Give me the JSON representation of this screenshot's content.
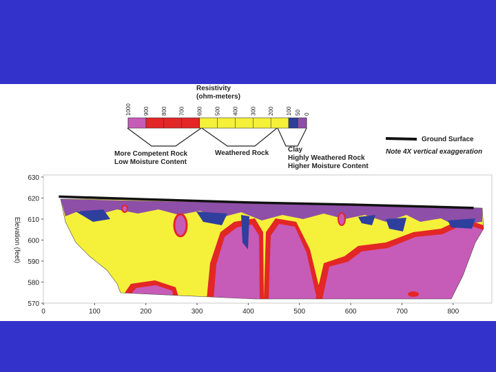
{
  "chart_data": {
    "type": "heatmap",
    "colorbar": {
      "title_line1": "Resistivity",
      "title_line2": "(ohm-meters)",
      "ticks": [
        "1000",
        "900",
        "800",
        "700",
        "600",
        "500",
        "400",
        "300",
        "200",
        "100",
        "50",
        "0"
      ],
      "bands": [
        {
          "from": 1000,
          "to": 900,
          "color": "#c75bb8"
        },
        {
          "from": 900,
          "to": 600,
          "color": "#e32626"
        },
        {
          "from": 600,
          "to": 100,
          "color": "#f5f03a"
        },
        {
          "from": 100,
          "to": 50,
          "color": "#2e3f9e"
        },
        {
          "from": 50,
          "to": 0,
          "color": "#8e4fa8"
        }
      ]
    },
    "annotations": {
      "competent_line1": "More Competent Rock",
      "competent_line2": "Low Moisture Content",
      "weathered": "Weathered Rock",
      "clay_line1": "Clay",
      "clay_line2": "Highly Weathered Rock",
      "clay_line3": "Higher Moisture Content",
      "ground_surface": "Ground Surface",
      "exaggeration_note": "Note 4X vertical exaggeration"
    },
    "ylabel": "Elevation (feet)",
    "xlim": [
      0,
      850
    ],
    "ylim": [
      570,
      630
    ],
    "x_ticks": [
      0,
      100,
      200,
      300,
      400,
      500,
      600,
      700,
      800
    ],
    "y_ticks": [
      570,
      580,
      590,
      600,
      610,
      620,
      630
    ],
    "ground_surface": [
      {
        "x": 30,
        "y": 620.7
      },
      {
        "x": 200,
        "y": 619.4
      },
      {
        "x": 400,
        "y": 617.9
      },
      {
        "x": 600,
        "y": 616.9
      },
      {
        "x": 840,
        "y": 615.3
      }
    ],
    "colors": {
      "pink": "#c75bb8",
      "red": "#e32626",
      "yellow": "#f5f03a",
      "blue": "#2e3f9e",
      "purple": "#8e4fa8"
    }
  }
}
